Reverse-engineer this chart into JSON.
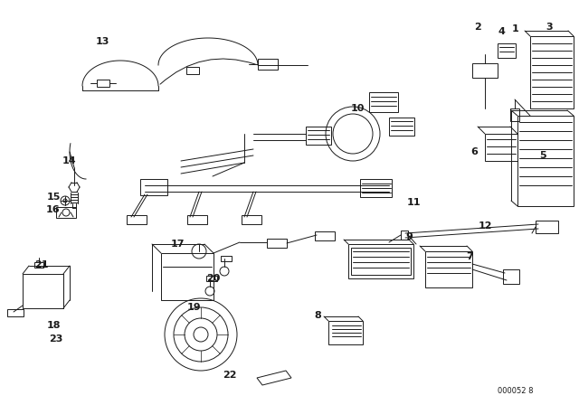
{
  "bg_color": "#ffffff",
  "line_color": "#1a1a1a",
  "diagram_code": "000052 8",
  "fig_width": 6.4,
  "fig_height": 4.48,
  "dpi": 100
}
